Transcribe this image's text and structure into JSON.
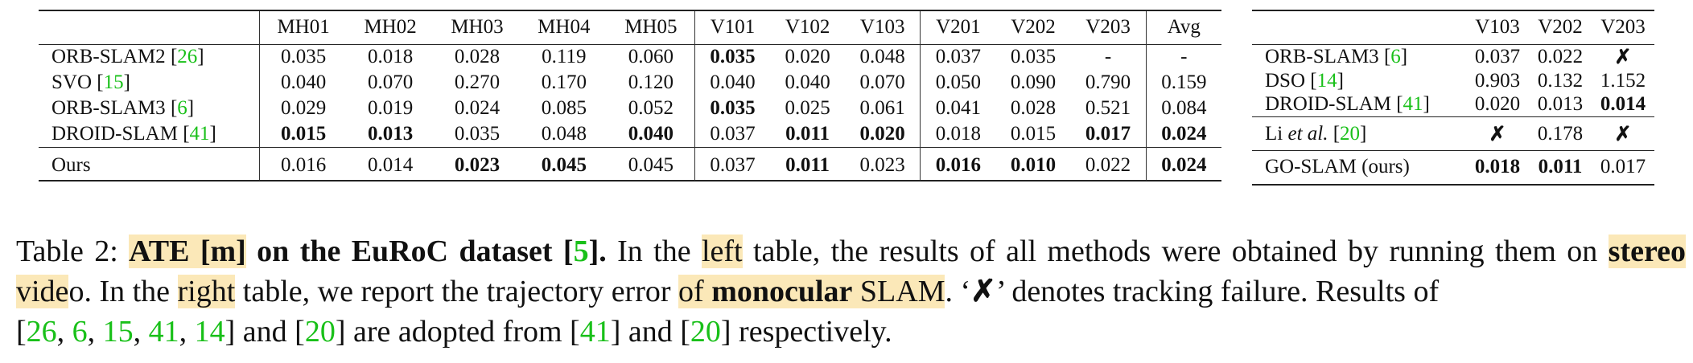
{
  "left_table": {
    "columns": [
      "",
      "MH01",
      "MH02",
      "MH03",
      "MH04",
      "MH05",
      "V101",
      "V102",
      "V103",
      "V201",
      "V202",
      "V203",
      "Avg"
    ],
    "rows": [
      {
        "name": "ORB-SLAM2",
        "ref": "26",
        "values": [
          "0.035",
          "0.018",
          "0.028",
          "0.119",
          "0.060",
          "0.035",
          "0.020",
          "0.048",
          "0.037",
          "0.035",
          "-",
          "-"
        ],
        "bold": [
          5
        ]
      },
      {
        "name": "SVO",
        "ref": "15",
        "values": [
          "0.040",
          "0.070",
          "0.270",
          "0.170",
          "0.120",
          "0.040",
          "0.040",
          "0.070",
          "0.050",
          "0.090",
          "0.790",
          "0.159"
        ],
        "bold": []
      },
      {
        "name": "ORB-SLAM3",
        "ref": "6",
        "values": [
          "0.029",
          "0.019",
          "0.024",
          "0.085",
          "0.052",
          "0.035",
          "0.025",
          "0.061",
          "0.041",
          "0.028",
          "0.521",
          "0.084"
        ],
        "bold": [
          5
        ]
      },
      {
        "name": "DROID-SLAM",
        "ref": "41",
        "values": [
          "0.015",
          "0.013",
          "0.035",
          "0.048",
          "0.040",
          "0.037",
          "0.011",
          "0.020",
          "0.018",
          "0.015",
          "0.017",
          "0.024"
        ],
        "bold": [
          0,
          1,
          4,
          6,
          7,
          10,
          11
        ]
      },
      {
        "name": "Ours",
        "ref": "",
        "values": [
          "0.016",
          "0.014",
          "0.023",
          "0.045",
          "0.045",
          "0.037",
          "0.011",
          "0.023",
          "0.016",
          "0.010",
          "0.022",
          "0.024"
        ],
        "bold": [
          2,
          3,
          6,
          8,
          9,
          11
        ]
      }
    ]
  },
  "right_table": {
    "columns": [
      "",
      "V103",
      "V202",
      "V203"
    ],
    "rows": [
      {
        "name": "ORB-SLAM3",
        "ref": "6",
        "values": [
          "0.037",
          "0.022",
          "✗"
        ],
        "bold": [
          2
        ]
      },
      {
        "name": "DSO",
        "ref": "14",
        "values": [
          "0.903",
          "0.132",
          "1.152"
        ],
        "bold": []
      },
      {
        "name": "DROID-SLAM",
        "ref": "41",
        "values": [
          "0.020",
          "0.013",
          "0.014"
        ],
        "bold": [
          2
        ]
      },
      {
        "name_prefix": "Li ",
        "name_italic": "et al.",
        "ref": "20",
        "values": [
          "✗",
          "0.178",
          "✗"
        ],
        "bold": [
          0,
          2
        ]
      },
      {
        "name": "GO-SLAM (ours)",
        "ref": "",
        "values": [
          "0.018",
          "0.011",
          "0.017"
        ],
        "bold": [
          0,
          1
        ]
      }
    ]
  },
  "caption": {
    "t1": "Table 2: ",
    "t2": "ATE [m]",
    "t3": " on the EuRoC dataset [",
    "t4": "5",
    "t5": "].",
    "t6": " In the ",
    "t7": "left",
    "t8": " table, the results of all methods were obtained by running them on ",
    "t9": "stereo",
    "t10": " vide",
    "t11": "o. In the ",
    "t12": "right",
    "t13": " table, we report the trajectory error ",
    "t14": "of ",
    "t15": "monocular",
    "t16": " SLAM",
    "t17": ". ‘",
    "t18": "✗",
    "t19": "’ denotes tracking failure. Results of",
    "t20": "[",
    "r1": "26",
    "c1": ", ",
    "r2": "6",
    "c2": ", ",
    "r3": "15",
    "c3": ", ",
    "r4": "41",
    "c4": ", ",
    "r5": "14",
    "t21": "] and [",
    "r6": "20",
    "t22": "] are adopted from [",
    "r7": "41",
    "t23": "] and [",
    "r8": "20",
    "t24": "] respectively."
  }
}
